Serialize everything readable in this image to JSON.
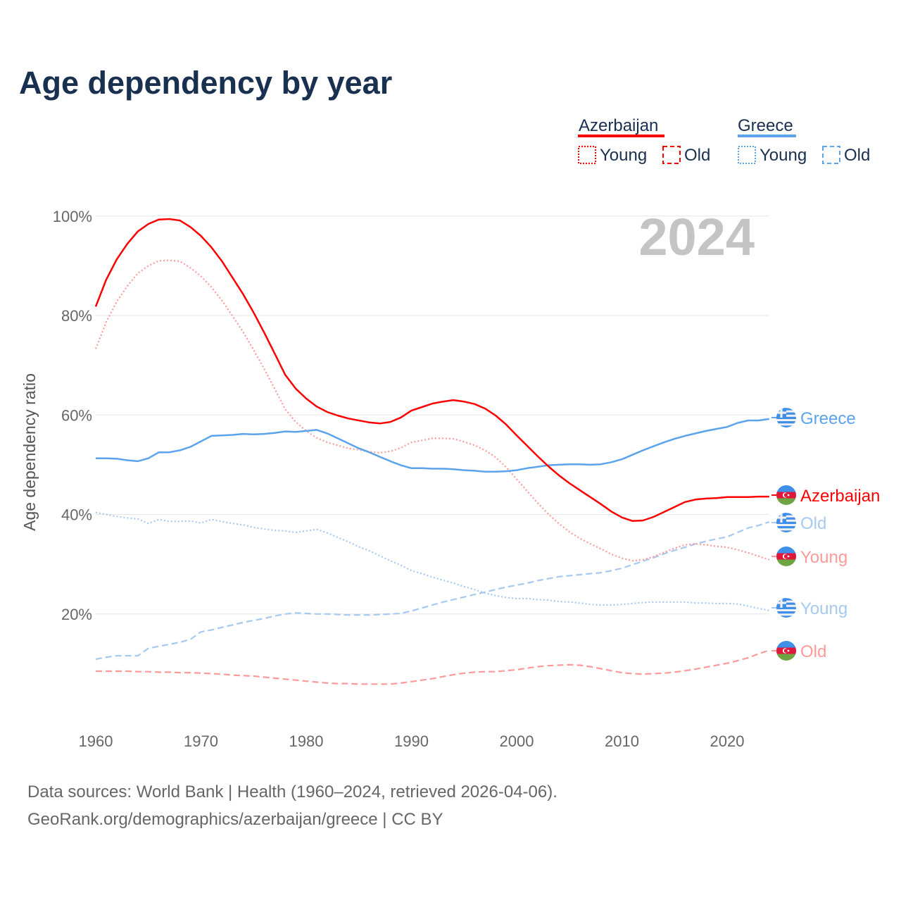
{
  "chart_data": {
    "type": "line",
    "title": "Age dependency by year",
    "year_badge": "2024",
    "ylabel": "Age dependency ratio",
    "xlabel": "",
    "ylim": [
      0,
      100
    ],
    "xlim": [
      1960,
      2024
    ],
    "y_ticks": [
      {
        "v": 20,
        "label": "20%"
      },
      {
        "v": 40,
        "label": "40%"
      },
      {
        "v": 60,
        "label": "60%"
      },
      {
        "v": 80,
        "label": "80%"
      },
      {
        "v": 100,
        "label": "100%"
      }
    ],
    "x_ticks": [
      {
        "v": 1960,
        "label": "1960"
      },
      {
        "v": 1970,
        "label": "1970"
      },
      {
        "v": 1980,
        "label": "1980"
      },
      {
        "v": 1990,
        "label": "1990"
      },
      {
        "v": 2000,
        "label": "2000"
      },
      {
        "v": 2010,
        "label": "2010"
      },
      {
        "v": 2020,
        "label": "2020"
      }
    ],
    "grid": true,
    "legend": {
      "placement": "top-right",
      "groups": [
        {
          "name": "Azerbaijan",
          "color": "#ff0000",
          "items": [
            {
              "label": "Young",
              "style": "dotted"
            },
            {
              "label": "Old",
              "style": "dashed"
            }
          ]
        },
        {
          "name": "Greece",
          "color": "#5ba3ea",
          "items": [
            {
              "label": "Young",
              "style": "dotted"
            },
            {
              "label": "Old",
              "style": "dashed"
            }
          ]
        }
      ]
    },
    "x_start": 1960,
    "series": [
      {
        "id": "az-total",
        "name": "Azerbaijan",
        "label": "Azerbaijan",
        "country": "az",
        "color": "#ff0000",
        "style": "solid",
        "values": [
          81.8,
          87.2,
          91.3,
          94.4,
          96.9,
          98.4,
          99.3,
          99.4,
          99.1,
          97.8,
          96.0,
          93.7,
          90.9,
          87.6,
          84.3,
          80.6,
          76.6,
          72.4,
          68.1,
          65.3,
          63.3,
          61.7,
          60.6,
          59.9,
          59.3,
          58.9,
          58.5,
          58.3,
          58.6,
          59.5,
          60.9,
          61.6,
          62.3,
          62.7,
          63.0,
          62.7,
          62.2,
          61.3,
          59.9,
          58.1,
          55.9,
          53.8,
          51.7,
          49.7,
          47.9,
          46.3,
          44.9,
          43.5,
          42.1,
          40.6,
          39.4,
          38.7,
          38.8,
          39.5,
          40.5,
          41.5,
          42.5,
          43.0,
          43.2,
          43.3,
          43.5,
          43.5,
          43.5,
          43.6,
          43.6
        ]
      },
      {
        "id": "az-young",
        "name": "Azerbaijan Young",
        "label": "Young",
        "country": "az",
        "color": "#ff9a9a",
        "style": "dotted",
        "values": [
          73.3,
          78.7,
          82.8,
          85.9,
          88.5,
          90.0,
          91.0,
          91.1,
          90.9,
          89.6,
          87.9,
          85.7,
          83.0,
          79.9,
          76.7,
          73.1,
          69.3,
          65.3,
          61.2,
          58.6,
          56.8,
          55.4,
          54.5,
          53.9,
          53.3,
          53.0,
          52.6,
          52.4,
          52.7,
          53.4,
          54.5,
          54.9,
          55.3,
          55.3,
          55.2,
          54.6,
          53.9,
          52.9,
          51.5,
          49.5,
          47.1,
          44.7,
          42.3,
          40.1,
          38.2,
          36.5,
          35.2,
          34.1,
          33.1,
          32.0,
          31.2,
          30.7,
          30.9,
          31.5,
          32.4,
          33.2,
          33.9,
          34.1,
          33.9,
          33.6,
          33.4,
          32.9,
          32.3,
          31.6,
          30.9
        ]
      },
      {
        "id": "az-old",
        "name": "Azerbaijan Old",
        "label": "Old",
        "country": "az",
        "color": "#ff9a9a",
        "style": "dashed",
        "values": [
          8.5,
          8.5,
          8.5,
          8.5,
          8.4,
          8.4,
          8.3,
          8.3,
          8.2,
          8.2,
          8.1,
          8.0,
          7.9,
          7.7,
          7.6,
          7.5,
          7.3,
          7.1,
          6.9,
          6.7,
          6.5,
          6.3,
          6.1,
          6.0,
          6.0,
          5.9,
          5.9,
          5.9,
          5.9,
          6.1,
          6.4,
          6.7,
          7.0,
          7.4,
          7.8,
          8.1,
          8.3,
          8.4,
          8.4,
          8.6,
          8.8,
          9.1,
          9.4,
          9.6,
          9.7,
          9.8,
          9.7,
          9.4,
          9.0,
          8.6,
          8.2,
          8.0,
          7.9,
          8.0,
          8.1,
          8.3,
          8.6,
          8.9,
          9.3,
          9.7,
          10.1,
          10.6,
          11.2,
          12.0,
          12.7
        ]
      },
      {
        "id": "gr-total",
        "name": "Greece",
        "label": "Greece",
        "country": "gr",
        "color": "#5ba3ea",
        "style": "solid",
        "values": [
          51.3,
          51.3,
          51.2,
          50.9,
          50.7,
          51.3,
          52.5,
          52.5,
          52.9,
          53.6,
          54.7,
          55.8,
          55.9,
          56.0,
          56.2,
          56.1,
          56.2,
          56.4,
          56.7,
          56.6,
          56.8,
          57.0,
          56.3,
          55.3,
          54.3,
          53.3,
          52.5,
          51.6,
          50.7,
          49.9,
          49.3,
          49.3,
          49.2,
          49.2,
          49.1,
          48.9,
          48.8,
          48.6,
          48.6,
          48.7,
          48.9,
          49.3,
          49.6,
          49.9,
          50.0,
          50.1,
          50.1,
          50.0,
          50.1,
          50.5,
          51.1,
          52.0,
          52.9,
          53.7,
          54.5,
          55.2,
          55.8,
          56.3,
          56.8,
          57.2,
          57.6,
          58.4,
          58.9,
          58.9,
          59.2
        ]
      },
      {
        "id": "gr-young",
        "name": "Greece Young",
        "label": "Young",
        "country": "gr",
        "color": "#a6c9f0",
        "style": "dotted",
        "values": [
          40.4,
          40.0,
          39.6,
          39.3,
          39.1,
          38.2,
          39.0,
          38.6,
          38.6,
          38.7,
          38.3,
          39.0,
          38.6,
          38.2,
          37.9,
          37.4,
          37.1,
          36.8,
          36.7,
          36.4,
          36.7,
          37.0,
          36.3,
          35.4,
          34.5,
          33.5,
          32.7,
          31.7,
          30.7,
          29.8,
          28.7,
          28.1,
          27.4,
          26.8,
          26.2,
          25.5,
          24.9,
          24.2,
          23.7,
          23.3,
          23.1,
          23.1,
          22.9,
          22.8,
          22.5,
          22.4,
          22.2,
          21.9,
          21.8,
          21.8,
          21.9,
          22.1,
          22.3,
          22.4,
          22.4,
          22.4,
          22.4,
          22.2,
          22.2,
          22.1,
          22.1,
          22.0,
          21.6,
          21.1,
          20.7
        ]
      },
      {
        "id": "gr-old",
        "name": "Greece Old",
        "label": "Old",
        "country": "gr",
        "color": "#a6c9f0",
        "style": "dashed",
        "values": [
          10.9,
          11.3,
          11.6,
          11.6,
          11.6,
          13.1,
          13.5,
          13.9,
          14.3,
          14.9,
          16.4,
          16.8,
          17.3,
          17.8,
          18.3,
          18.7,
          19.1,
          19.6,
          20.0,
          20.2,
          20.1,
          20.0,
          20.0,
          19.9,
          19.8,
          19.8,
          19.8,
          19.9,
          20.0,
          20.1,
          20.6,
          21.2,
          21.8,
          22.4,
          22.9,
          23.4,
          23.9,
          24.4,
          24.9,
          25.4,
          25.8,
          26.2,
          26.7,
          27.1,
          27.5,
          27.7,
          27.9,
          28.1,
          28.3,
          28.7,
          29.2,
          29.9,
          30.6,
          31.3,
          32.1,
          32.8,
          33.4,
          34.1,
          34.6,
          35.1,
          35.5,
          36.4,
          37.3,
          37.8,
          38.5
        ]
      }
    ],
    "source_line1": "Data sources: World Bank | Health (1960–2024, retrieved 2026-04-06).",
    "source_line2": "GeoRank.org/demographics/azerbaijan/greece | CC BY"
  }
}
